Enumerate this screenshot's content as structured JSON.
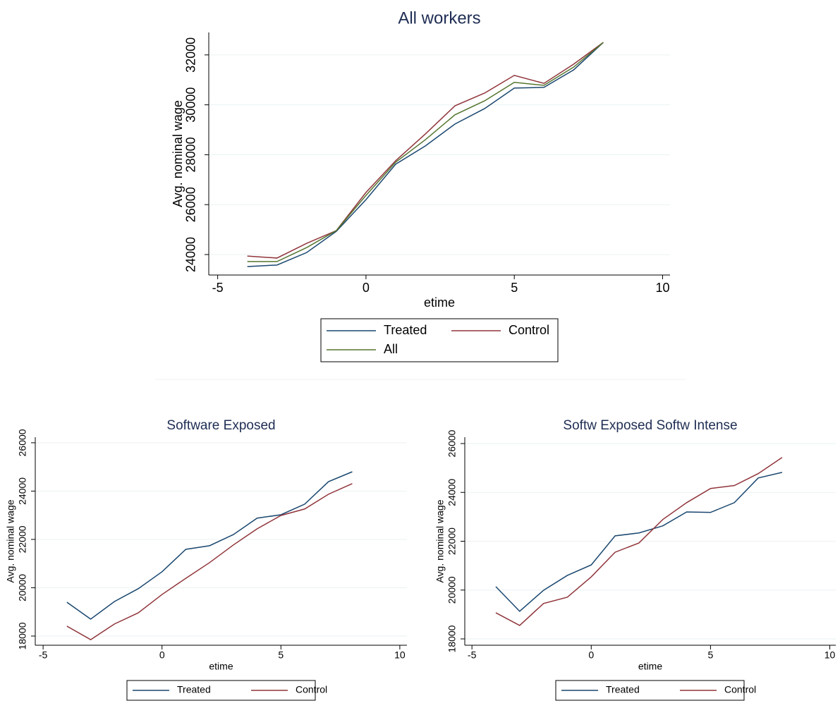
{
  "chart_data": [
    {
      "type": "line",
      "title": "All workers",
      "xlabel": "etime",
      "ylabel": "Avg. nominal wage",
      "x": [
        -4,
        -3,
        -2,
        -1,
        0,
        1,
        2,
        3,
        4,
        5,
        6,
        7,
        8
      ],
      "xlim": [
        -5.3,
        10.25
      ],
      "xticks": [
        -5,
        0,
        5,
        10
      ],
      "ylim": [
        23180,
        32900
      ],
      "yticks": [
        24000,
        26000,
        28000,
        30000,
        32000
      ],
      "grid": true,
      "legend": "bottom",
      "series": [
        {
          "name": "Treated",
          "color": "#1a476f",
          "values": [
            23520,
            23580,
            24080,
            24930,
            26200,
            27620,
            28350,
            29230,
            29850,
            30670,
            30700,
            31400,
            32500
          ]
        },
        {
          "name": "Control",
          "color": "#90353b",
          "values": [
            23940,
            23860,
            24450,
            24960,
            26490,
            27760,
            28830,
            29960,
            30470,
            31180,
            30860,
            31630,
            32500
          ]
        },
        {
          "name": "All",
          "color": "#55752f",
          "values": [
            23720,
            23720,
            24280,
            24960,
            26370,
            27700,
            28600,
            29600,
            30160,
            30900,
            30780,
            31510,
            32500
          ]
        }
      ]
    },
    {
      "type": "line",
      "title": "Software Exposed",
      "xlabel": "etime",
      "ylabel": "Avg. nominal wage",
      "x": [
        -4,
        -3,
        -2,
        -1,
        0,
        1,
        2,
        3,
        4,
        5,
        6,
        7,
        8
      ],
      "xlim": [
        -5.33,
        10.3
      ],
      "xticks": [
        -5,
        0,
        5,
        10
      ],
      "ylim": [
        17620,
        26230
      ],
      "yticks": [
        18000,
        20000,
        22000,
        24000,
        26000
      ],
      "grid": true,
      "legend": "bottom",
      "series": [
        {
          "name": "Treated",
          "color": "#1a476f",
          "values": [
            19400,
            18700,
            19430,
            19960,
            20660,
            21590,
            21740,
            22200,
            22880,
            23020,
            23460,
            24390,
            24800
          ]
        },
        {
          "name": "Control",
          "color": "#90353b",
          "values": [
            18410,
            17850,
            18500,
            18960,
            19720,
            20390,
            21040,
            21770,
            22440,
            22990,
            23260,
            23870,
            24310
          ]
        }
      ]
    },
    {
      "type": "line",
      "title": "Softw Exposed Softw Intense",
      "xlabel": "etime",
      "ylabel": "Avg. nominal wage",
      "x": [
        -4,
        -3,
        -2,
        -1,
        0,
        1,
        2,
        3,
        4,
        5,
        6,
        7,
        8
      ],
      "xlim": [
        -5.3,
        10.25
      ],
      "xticks": [
        -5,
        0,
        5,
        10
      ],
      "ylim": [
        17740,
        26260
      ],
      "yticks": [
        18000,
        20000,
        22000,
        24000,
        26000
      ],
      "grid": true,
      "legend": "bottom",
      "series": [
        {
          "name": "Treated",
          "color": "#1a476f",
          "values": [
            20140,
            19130,
            19990,
            20600,
            21030,
            22220,
            22340,
            22630,
            23200,
            23180,
            23580,
            24590,
            24820
          ]
        },
        {
          "name": "Control",
          "color": "#90353b",
          "values": [
            19070,
            18550,
            19450,
            19710,
            20540,
            21550,
            21930,
            22890,
            23580,
            24160,
            24280,
            24770,
            25430
          ]
        }
      ]
    }
  ]
}
